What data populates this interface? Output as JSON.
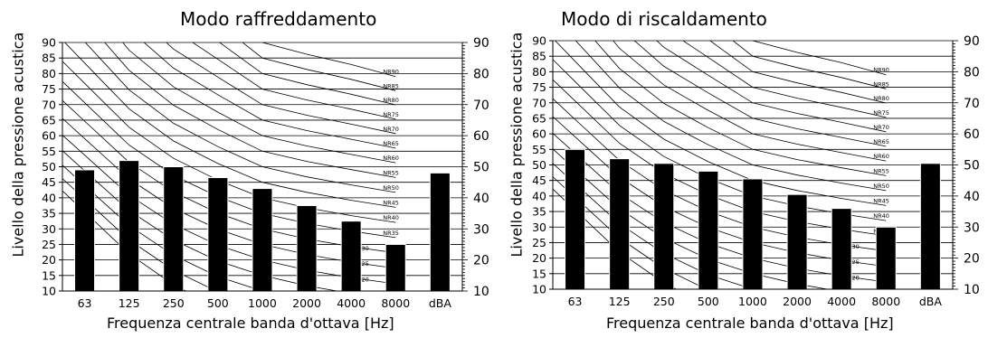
{
  "chart_data": [
    {
      "type": "bar",
      "title": "Modo raffreddamento",
      "xlabel": "Frequenza centrale banda d'ottava [Hz]",
      "ylabel": "Livello della pressione acustica",
      "categories": [
        "63",
        "125",
        "250",
        "500",
        "1000",
        "2000",
        "4000",
        "8000",
        "dBA"
      ],
      "values": [
        49,
        52,
        50,
        46.5,
        43,
        37.5,
        32.5,
        25,
        48
      ],
      "ylim": [
        10,
        90
      ],
      "yticks": [
        "10",
        "15",
        "20",
        "25",
        "30",
        "35",
        "40",
        "45",
        "50",
        "55",
        "60",
        "65",
        "70",
        "75",
        "80",
        "85",
        "90"
      ],
      "yticks_right": [
        "10",
        "20",
        "30",
        "40",
        "50",
        "60",
        "70",
        "80",
        "90"
      ],
      "nr_curves": [
        "NR0",
        "NR5",
        "NR10",
        "NR15",
        "NR20",
        "NR25",
        "NR30",
        "NR35",
        "NR40",
        "NR45",
        "NR50",
        "NR55",
        "NR60",
        "NR65",
        "NR70",
        "NR75",
        "NR80",
        "NR85",
        "NR90"
      ],
      "grid": true,
      "bar_color": "#000000"
    },
    {
      "type": "bar",
      "title": "Modo di riscaldamento",
      "xlabel": "Frequenza centrale banda d'ottava [Hz]",
      "ylabel": "Livello della pressione acustica",
      "categories": [
        "63",
        "125",
        "250",
        "500",
        "1000",
        "2000",
        "4000",
        "8000",
        "dBA"
      ],
      "values": [
        55,
        52,
        50.5,
        48,
        45.5,
        40.5,
        36,
        30,
        50.5
      ],
      "ylim": [
        10,
        90
      ],
      "yticks": [
        "10",
        "15",
        "20",
        "25",
        "30",
        "35",
        "40",
        "45",
        "50",
        "55",
        "60",
        "65",
        "70",
        "75",
        "80",
        "85",
        "90"
      ],
      "yticks_right": [
        "10",
        "20",
        "30",
        "40",
        "50",
        "60",
        "70",
        "80",
        "90"
      ],
      "nr_curves": [
        "NR0",
        "NR5",
        "NR10",
        "NR15",
        "NR20",
        "NR25",
        "NR30",
        "NR35",
        "NR40",
        "NR45",
        "NR50",
        "NR55",
        "NR60",
        "NR65",
        "NR70",
        "NR75",
        "NR80",
        "NR85",
        "NR90"
      ],
      "grid": true,
      "bar_color": "#000000"
    }
  ]
}
